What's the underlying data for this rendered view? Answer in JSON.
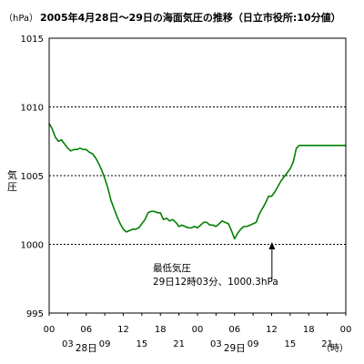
{
  "chart_data": {
    "type": "line",
    "title": "2005年4月28日～29日の海面気圧の推移（日立市役所:10分値）",
    "unit_label": "（hPa）",
    "ylabel": "気圧",
    "xunit_label": "（時）",
    "ylim": [
      995,
      1015
    ],
    "yticks": [
      995,
      1000,
      1005,
      1010,
      1015
    ],
    "xlim": [
      0,
      48
    ],
    "xtick_labels": [
      "00",
      "03",
      "06",
      "09",
      "12",
      "15",
      "18",
      "21",
      "00",
      "03",
      "06",
      "09",
      "12",
      "15",
      "18",
      "21",
      "00"
    ],
    "day_labels": [
      {
        "label": "28日",
        "x": 6
      },
      {
        "label": "29日",
        "x": 30
      }
    ],
    "grid": {
      "y_dashed": [
        1000,
        1005,
        1010
      ],
      "x": false
    },
    "series": [
      {
        "color": "#008000",
        "x": [
          0,
          0.5,
          1,
          1.5,
          2,
          2.5,
          3,
          3.5,
          4,
          4.5,
          5,
          5.5,
          6,
          6.5,
          7,
          7.5,
          8,
          8.5,
          9,
          9.5,
          10,
          10.5,
          11,
          11.5,
          12,
          12.5,
          13,
          13.5,
          14,
          14.5,
          15,
          15.5,
          16,
          16.5,
          17,
          17.5,
          18,
          18.5,
          19,
          19.5,
          20,
          20.5,
          21,
          21.5,
          22,
          22.5,
          23,
          23.5,
          24,
          24.5,
          25,
          25.5,
          26,
          26.5,
          27,
          27.5,
          28,
          28.5,
          29,
          29.5,
          30,
          30.5,
          31,
          31.5,
          32,
          32.5,
          33,
          33.5,
          34,
          34.5,
          35,
          35.5,
          36,
          36.5,
          37,
          37.5,
          38,
          38.5,
          39,
          39.5,
          40,
          40.5,
          41,
          41.5,
          42,
          42.5,
          43,
          43.5,
          44,
          44.5,
          45,
          45.5,
          46,
          46.5,
          47,
          47.5,
          48
        ],
        "y": [
          1008.8,
          1008.4,
          1007.8,
          1007.5,
          1007.6,
          1007.3,
          1007.0,
          1006.8,
          1006.9,
          1006.9,
          1007.0,
          1006.9,
          1006.9,
          1006.7,
          1006.6,
          1006.3,
          1005.9,
          1005.4,
          1004.8,
          1004.1,
          1003.2,
          1002.6,
          1002.0,
          1001.5,
          1001.1,
          1000.9,
          1001.0,
          1001.1,
          1001.1,
          1001.2,
          1001.5,
          1001.8,
          1002.3,
          1002.4,
          1002.4,
          1002.3,
          1002.3,
          1001.8,
          1001.9,
          1001.7,
          1001.8,
          1001.6,
          1001.3,
          1001.4,
          1001.3,
          1001.2,
          1001.2,
          1001.3,
          1001.2,
          1001.4,
          1001.6,
          1001.6,
          1001.4,
          1001.4,
          1001.3,
          1001.5,
          1001.7,
          1001.6,
          1001.5,
          1001.0,
          1000.4,
          1000.8,
          1001.1,
          1001.3,
          1001.3,
          1001.4,
          1001.5,
          1001.6,
          1002.2,
          1002.6,
          1003.0,
          1003.5,
          1003.5,
          1003.8,
          1004.2,
          1004.6,
          1004.9,
          1005.2,
          1005.5,
          1006.0,
          1007.0,
          1007.2,
          1007.2,
          1007.2,
          1007.2,
          1007.2,
          1007.2,
          1007.2,
          1007.2,
          1007.2,
          1007.2,
          1007.2,
          1007.2,
          1007.2,
          1007.2,
          1007.2,
          1007.2
        ]
      }
    ],
    "annotation": {
      "line1": "最低気圧",
      "line2": "29日12時03分、1000.3hPa",
      "point": {
        "x": 36.05,
        "y": 1000.3
      }
    }
  }
}
